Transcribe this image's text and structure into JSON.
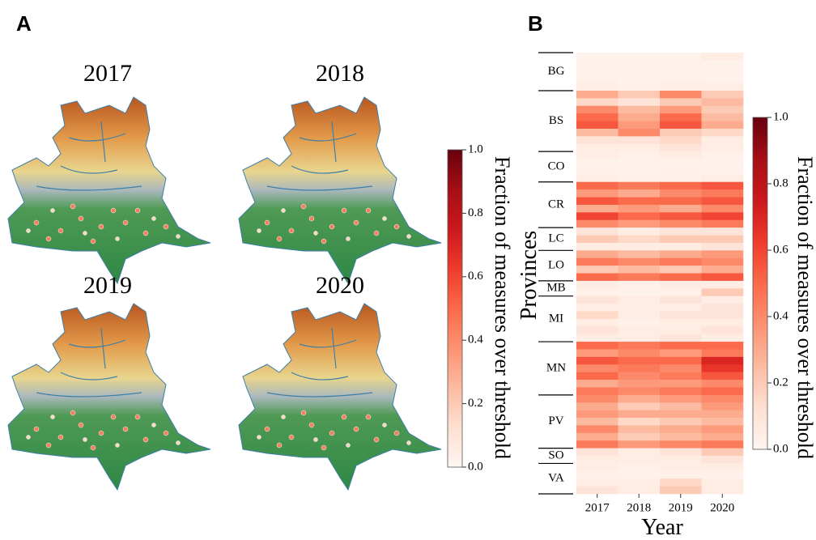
{
  "panel_a": {
    "label": "A",
    "maps": [
      "2017",
      "2018",
      "2019",
      "2020"
    ],
    "colorbar": {
      "label": "Fraction of measures over threshold",
      "lim": [
        0,
        1
      ],
      "ticks": [
        {
          "value": 0,
          "label": "0.0"
        },
        0.2,
        0.4,
        0.6,
        0.8,
        {
          "value": 1,
          "label": "1.0"
        }
      ]
    }
  },
  "chart_data": {
    "type": "heatmap",
    "panel_label": "B",
    "xlabel": "Year",
    "ylabel": "Provinces",
    "categories": [
      "2017",
      "2018",
      "2019",
      "2020"
    ],
    "groups": [
      {
        "name": "BG",
        "values": [
          [
            0.02,
            0.02,
            0.02,
            0.05
          ],
          [
            0.03,
            0.02,
            0.03,
            0.02
          ],
          [
            0.02,
            0.03,
            0.02,
            0.03
          ],
          [
            0.03,
            0.02,
            0.03,
            0.02
          ],
          [
            0.05,
            0.03,
            0.05,
            0.05
          ]
        ]
      },
      {
        "name": "BS",
        "values": [
          [
            0.3,
            0.2,
            0.4,
            0.2
          ],
          [
            0.15,
            0.1,
            0.2,
            0.25
          ],
          [
            0.4,
            0.25,
            0.35,
            0.2
          ],
          [
            0.5,
            0.3,
            0.5,
            0.25
          ],
          [
            0.55,
            0.35,
            0.55,
            0.3
          ],
          [
            0.25,
            0.4,
            0.2,
            0.15
          ],
          [
            0.1,
            0.1,
            0.15,
            0.05
          ],
          [
            0.05,
            0.05,
            0.1,
            0.05
          ]
        ]
      },
      {
        "name": "CO",
        "values": [
          [
            0.05,
            0.03,
            0.05,
            0.03
          ],
          [
            0.02,
            0.02,
            0.02,
            0.02
          ],
          [
            0.03,
            0.02,
            0.03,
            0.02
          ],
          [
            0.05,
            0.03,
            0.03,
            0.05
          ]
        ]
      },
      {
        "name": "CR",
        "values": [
          [
            0.5,
            0.45,
            0.5,
            0.55
          ],
          [
            0.35,
            0.3,
            0.4,
            0.45
          ],
          [
            0.55,
            0.5,
            0.5,
            0.55
          ],
          [
            0.3,
            0.35,
            0.3,
            0.4
          ],
          [
            0.6,
            0.5,
            0.55,
            0.6
          ],
          [
            0.4,
            0.35,
            0.4,
            0.45
          ]
        ]
      },
      {
        "name": "LC",
        "values": [
          [
            0.1,
            0.05,
            0.1,
            0.1
          ],
          [
            0.2,
            0.15,
            0.2,
            0.2
          ],
          [
            0.05,
            0.05,
            0.05,
            0.1
          ]
        ]
      },
      {
        "name": "LO",
        "values": [
          [
            0.3,
            0.25,
            0.3,
            0.35
          ],
          [
            0.45,
            0.4,
            0.45,
            0.4
          ],
          [
            0.2,
            0.25,
            0.2,
            0.3
          ],
          [
            0.5,
            0.45,
            0.5,
            0.55
          ]
        ]
      },
      {
        "name": "MB",
        "values": [
          [
            0.05,
            0.03,
            0.05,
            0.05
          ],
          [
            0.03,
            0.02,
            0.03,
            0.2
          ]
        ]
      },
      {
        "name": "MI",
        "values": [
          [
            0.1,
            0.05,
            0.1,
            0.05
          ],
          [
            0.05,
            0.05,
            0.05,
            0.1
          ],
          [
            0.15,
            0.05,
            0.1,
            0.1
          ],
          [
            0.05,
            0.03,
            0.05,
            0.05
          ],
          [
            0.1,
            0.05,
            0.05,
            0.1
          ],
          [
            0.05,
            0.05,
            0.1,
            0.05
          ]
        ]
      },
      {
        "name": "MN",
        "values": [
          [
            0.5,
            0.45,
            0.5,
            0.5
          ],
          [
            0.35,
            0.4,
            0.35,
            0.45
          ],
          [
            0.55,
            0.5,
            0.5,
            0.7
          ],
          [
            0.4,
            0.45,
            0.4,
            0.65
          ],
          [
            0.5,
            0.4,
            0.45,
            0.55
          ],
          [
            0.3,
            0.35,
            0.35,
            0.4
          ],
          [
            0.45,
            0.4,
            0.45,
            0.5
          ]
        ]
      },
      {
        "name": "PV",
        "values": [
          [
            0.4,
            0.3,
            0.35,
            0.4
          ],
          [
            0.3,
            0.2,
            0.25,
            0.35
          ],
          [
            0.35,
            0.3,
            0.3,
            0.3
          ],
          [
            0.25,
            0.15,
            0.2,
            0.25
          ],
          [
            0.4,
            0.25,
            0.3,
            0.35
          ],
          [
            0.3,
            0.2,
            0.25,
            0.3
          ],
          [
            0.45,
            0.35,
            0.4,
            0.45
          ]
        ]
      },
      {
        "name": "SO",
        "values": [
          [
            0.1,
            0.05,
            0.1,
            0.2
          ],
          [
            0.05,
            0.05,
            0.05,
            0.1
          ]
        ]
      },
      {
        "name": "VA",
        "values": [
          [
            0.05,
            0.03,
            0.05,
            0.05
          ],
          [
            0.03,
            0.02,
            0.03,
            0.03
          ],
          [
            0.05,
            0.05,
            0.15,
            0.05
          ],
          [
            0.1,
            0.05,
            0.2,
            0.05
          ]
        ]
      }
    ],
    "zlim": [
      0,
      1
    ],
    "zticks": [
      {
        "value": 0,
        "label": "0.0"
      },
      0.2,
      0.4,
      0.6,
      0.8,
      {
        "value": 1,
        "label": "1.0"
      }
    ],
    "colorbar_label": "Fraction of measures over threshold",
    "colormap": [
      "#fff5f0",
      "#fee0d2",
      "#fcbba1",
      "#fc9272",
      "#fb6a4a",
      "#ef3b2c",
      "#cb181d",
      "#a50f15",
      "#67000d"
    ]
  }
}
